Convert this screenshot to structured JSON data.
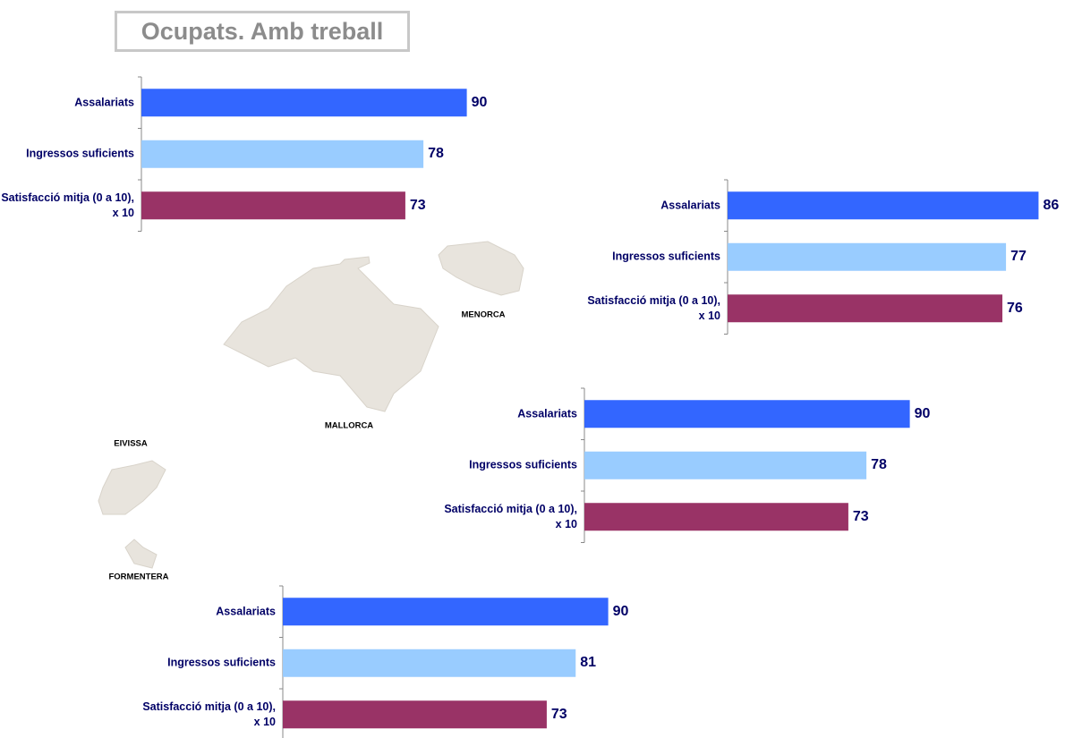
{
  "title": "Ocupats. Amb treball",
  "map_labels": [
    "MENORCA",
    "MALLORCA",
    "EIVISSA",
    "FORMENTERA"
  ],
  "chart_data": [
    {
      "type": "bar",
      "orientation": "horizontal",
      "categories": [
        "Assalariats",
        "Ingressos suficients",
        "Satisfacció mitja (0 a 10), x 10"
      ],
      "values": [
        90,
        78,
        73
      ],
      "colors": [
        "#3366ff",
        "#99ccff",
        "#993366"
      ]
    },
    {
      "type": "bar",
      "orientation": "horizontal",
      "categories": [
        "Assalariats",
        "Ingressos suficients",
        "Satisfacció mitja (0 a 10), x 10"
      ],
      "values": [
        86,
        77,
        76
      ],
      "colors": [
        "#3366ff",
        "#99ccff",
        "#993366"
      ]
    },
    {
      "type": "bar",
      "orientation": "horizontal",
      "categories": [
        "Assalariats",
        "Ingressos suficients",
        "Satisfacció mitja (0 a 10), x 10"
      ],
      "values": [
        90,
        78,
        73
      ],
      "colors": [
        "#3366ff",
        "#99ccff",
        "#993366"
      ]
    },
    {
      "type": "bar",
      "orientation": "horizontal",
      "categories": [
        "Assalariats",
        "Ingressos suficients",
        "Satisfacció mitja (0 a 10), x 10"
      ],
      "values": [
        90,
        81,
        73
      ],
      "colors": [
        "#3366ff",
        "#99ccff",
        "#993366"
      ]
    }
  ]
}
